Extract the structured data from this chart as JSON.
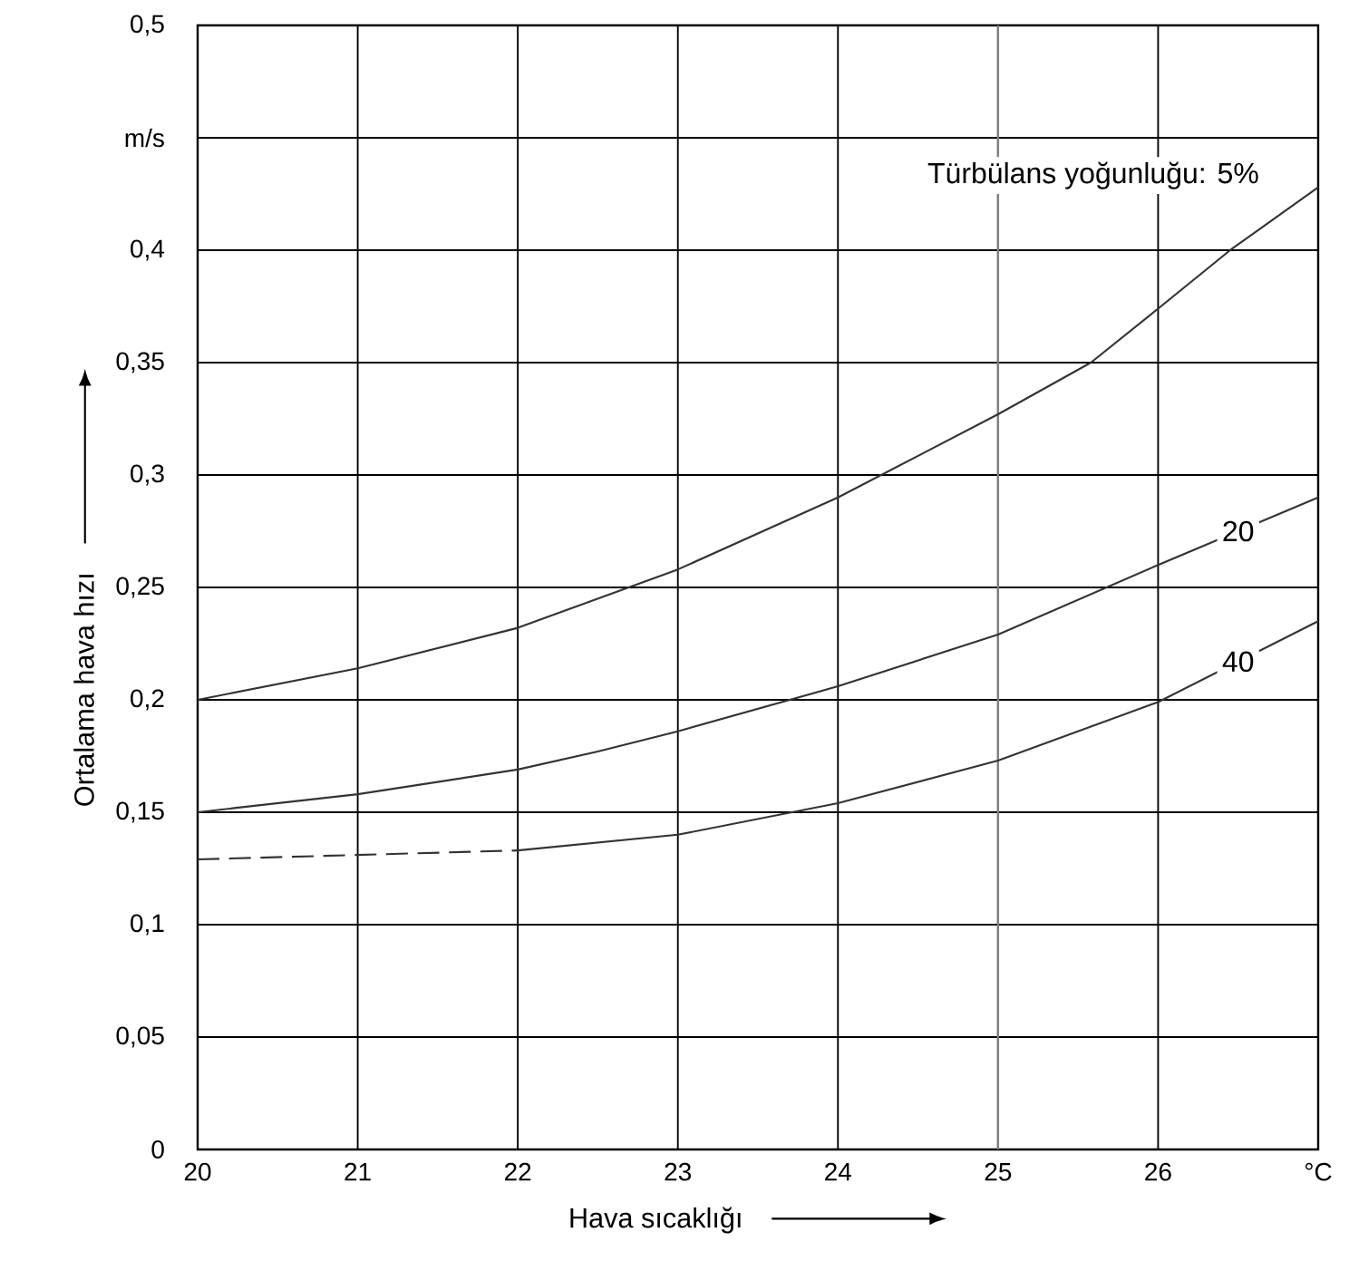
{
  "chart_data": {
    "type": "line",
    "xlabel": "Hava sıcaklığı",
    "ylabel": "Ortalama hava hızı",
    "xlim": [
      20,
      27
    ],
    "ylim": [
      0,
      0.5
    ],
    "xticks": [
      20,
      21,
      22,
      23,
      24,
      25,
      26,
      {
        "value": 27,
        "label": "°C"
      }
    ],
    "yticks": [
      0,
      {
        "value": 0.05,
        "label": "0,05"
      },
      {
        "value": 0.1,
        "label": "0,1"
      },
      {
        "value": 0.15,
        "label": "0,15"
      },
      {
        "value": 0.2,
        "label": "0,2"
      },
      {
        "value": 0.25,
        "label": "0,25"
      },
      {
        "value": 0.3,
        "label": "0,3"
      },
      {
        "value": 0.35,
        "label": "0,35"
      },
      {
        "value": 0.4,
        "label": "0,4"
      },
      {
        "value": 0.45,
        "label": "m/s"
      },
      {
        "value": 0.5,
        "label": "0,5"
      }
    ],
    "grid": true,
    "marker": "none",
    "ref_lines": [
      {
        "axis": "x",
        "value": 25,
        "color": "#808080"
      }
    ],
    "series": [
      {
        "name": "Türbülans yoğunluğu: 5%",
        "color": "#333333",
        "x": [
          20,
          21,
          22,
          23,
          24,
          25,
          25.58,
          26,
          26.45,
          27
        ],
        "values": [
          0.2,
          0.214,
          0.232,
          0.258,
          0.29,
          0.327,
          0.35,
          0.374,
          0.4,
          0.428
        ]
      },
      {
        "name": "20",
        "color": "#333333",
        "x": [
          20,
          21,
          22,
          22.5,
          23,
          24,
          25,
          26,
          27
        ],
        "values": [
          0.15,
          0.158,
          0.169,
          0.177,
          0.186,
          0.206,
          0.229,
          0.26,
          0.29
        ]
      },
      {
        "color": "#333333",
        "line_style": "dashed",
        "x": [
          20,
          21,
          22
        ],
        "values": [
          0.129,
          0.131,
          0.133
        ]
      },
      {
        "name": "40",
        "color": "#333333",
        "x": [
          22,
          23,
          24,
          25,
          26,
          27
        ],
        "values": [
          0.133,
          0.14,
          0.154,
          0.173,
          0.199,
          0.235
        ]
      }
    ]
  }
}
